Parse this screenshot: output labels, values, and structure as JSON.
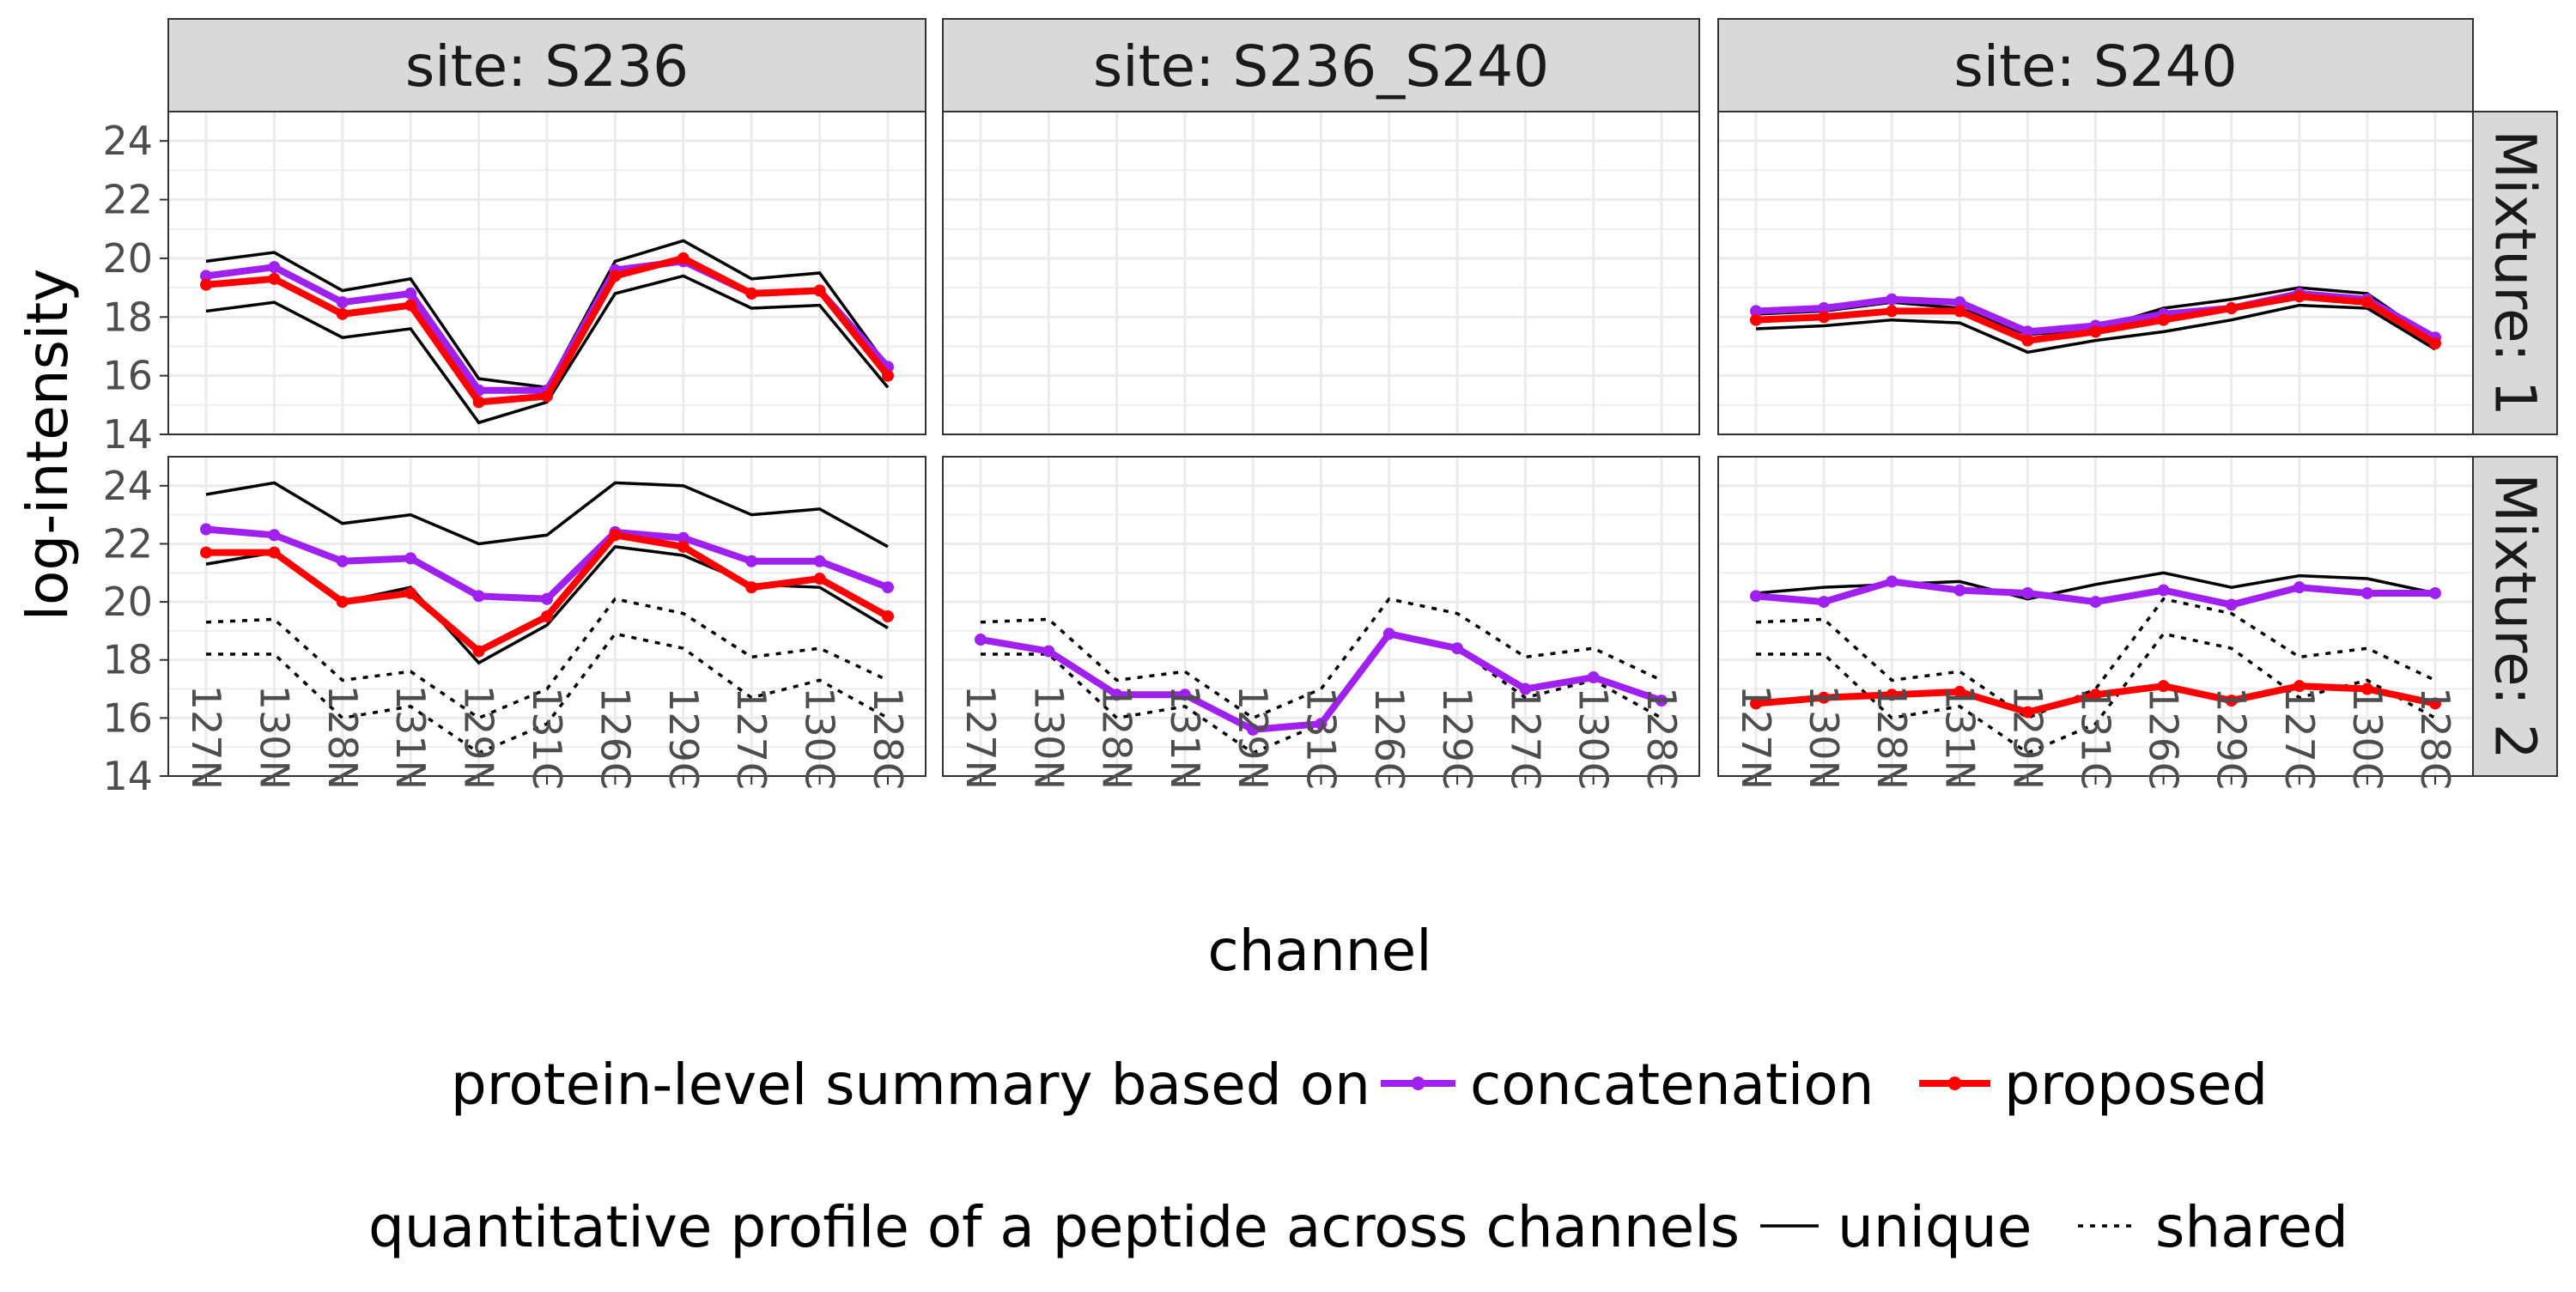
{
  "chart_data": {
    "type": "line",
    "xlabel": "channel",
    "ylabel": "log-intensity",
    "ylim": [
      14,
      25
    ],
    "yticks": [
      14,
      16,
      18,
      20,
      22,
      24
    ],
    "grid": true,
    "categories": [
      "127N",
      "130N",
      "128N",
      "131N",
      "129N",
      "131C",
      "126C",
      "129C",
      "127C",
      "130C",
      "128C"
    ],
    "facet_cols": [
      "site: S236",
      "site: S236_S240",
      "site: S240"
    ],
    "facet_rows": [
      "Mixture:  1",
      "Mixture:  2"
    ],
    "legend": {
      "position": "bottom",
      "summary_title": "protein-level summary based on",
      "summary_items": [
        {
          "label": "concatenation",
          "color": "#A020F0"
        },
        {
          "label": "proposed",
          "color": "#FF0000"
        }
      ],
      "profile_title": "quantitative profile of a peptide across channels",
      "profile_items": [
        {
          "label": "unique",
          "dash": "solid"
        },
        {
          "label": "shared",
          "dash": "dotted"
        }
      ]
    },
    "panels": [
      {
        "site": "site: S236",
        "mixture": "Mixture:  1",
        "peptides": [
          {
            "type": "unique",
            "values": [
              19.9,
              20.2,
              18.9,
              19.3,
              15.9,
              15.6,
              19.9,
              20.6,
              19.3,
              19.5,
              16.3
            ]
          },
          {
            "type": "unique",
            "values": [
              18.2,
              18.5,
              17.3,
              17.6,
              14.4,
              15.1,
              18.8,
              19.4,
              18.3,
              18.4,
              15.6
            ]
          }
        ],
        "summaries": [
          {
            "method": "concatenation",
            "values": [
              19.4,
              19.7,
              18.5,
              18.8,
              15.5,
              15.5,
              19.6,
              19.9,
              18.8,
              18.9,
              16.3
            ]
          },
          {
            "method": "proposed",
            "values": [
              19.1,
              19.3,
              18.1,
              18.4,
              15.1,
              15.3,
              19.4,
              20.0,
              18.8,
              18.9,
              16.0
            ]
          }
        ]
      },
      {
        "site": "site: S236_S240",
        "mixture": "Mixture:  1",
        "peptides": [],
        "summaries": []
      },
      {
        "site": "site: S240",
        "mixture": "Mixture:  1",
        "peptides": [
          {
            "type": "unique",
            "values": [
              18.1,
              18.2,
              18.5,
              18.3,
              17.4,
              17.6,
              18.3,
              18.6,
              19.0,
              18.8,
              17.2
            ]
          },
          {
            "type": "unique",
            "values": [
              17.6,
              17.7,
              17.9,
              17.8,
              16.8,
              17.2,
              17.5,
              17.9,
              18.4,
              18.3,
              16.9
            ]
          }
        ],
        "summaries": [
          {
            "method": "concatenation",
            "values": [
              18.2,
              18.3,
              18.6,
              18.5,
              17.5,
              17.7,
              18.1,
              18.3,
              18.8,
              18.6,
              17.3
            ]
          },
          {
            "method": "proposed",
            "values": [
              17.9,
              18.0,
              18.2,
              18.2,
              17.2,
              17.5,
              17.9,
              18.3,
              18.7,
              18.5,
              17.1
            ]
          }
        ]
      },
      {
        "site": "site: S236",
        "mixture": "Mixture:  2",
        "peptides": [
          {
            "type": "unique",
            "values": [
              23.7,
              24.1,
              22.7,
              23.0,
              22.0,
              22.3,
              24.1,
              24.0,
              23.0,
              23.2,
              21.9
            ]
          },
          {
            "type": "unique",
            "values": [
              21.3,
              21.7,
              20.0,
              20.5,
              17.9,
              19.2,
              21.9,
              21.6,
              20.6,
              20.5,
              19.1
            ]
          },
          {
            "type": "shared",
            "values": [
              19.3,
              19.4,
              17.3,
              17.6,
              16.0,
              17.0,
              20.1,
              19.6,
              18.1,
              18.4,
              17.3
            ]
          },
          {
            "type": "shared",
            "values": [
              18.2,
              18.2,
              16.0,
              16.4,
              14.8,
              15.8,
              18.9,
              18.4,
              16.7,
              17.3,
              16.0
            ]
          }
        ],
        "summaries": [
          {
            "method": "concatenation",
            "values": [
              22.5,
              22.3,
              21.4,
              21.5,
              20.2,
              20.1,
              22.4,
              22.2,
              21.4,
              21.4,
              20.5
            ]
          },
          {
            "method": "proposed",
            "values": [
              21.7,
              21.7,
              20.0,
              20.3,
              18.3,
              19.5,
              22.3,
              21.9,
              20.5,
              20.8,
              19.5
            ]
          }
        ]
      },
      {
        "site": "site: S236_S240",
        "mixture": "Mixture:  2",
        "peptides": [
          {
            "type": "shared",
            "values": [
              19.3,
              19.4,
              17.3,
              17.6,
              16.0,
              17.0,
              20.1,
              19.6,
              18.1,
              18.4,
              17.3
            ]
          },
          {
            "type": "shared",
            "values": [
              18.2,
              18.2,
              16.0,
              16.4,
              14.8,
              15.8,
              18.9,
              18.4,
              16.7,
              17.3,
              16.0
            ]
          }
        ],
        "summaries": [
          {
            "method": "concatenation",
            "values": [
              18.7,
              18.3,
              16.8,
              16.8,
              15.6,
              15.8,
              18.9,
              18.4,
              17.0,
              17.4,
              16.6
            ]
          }
        ]
      },
      {
        "site": "site: S240",
        "mixture": "Mixture:  2",
        "peptides": [
          {
            "type": "unique",
            "values": [
              20.3,
              20.5,
              20.6,
              20.7,
              20.1,
              20.6,
              21.0,
              20.5,
              20.9,
              20.8,
              20.3
            ]
          },
          {
            "type": "shared",
            "values": [
              19.3,
              19.4,
              17.3,
              17.6,
              16.0,
              17.0,
              20.1,
              19.6,
              18.1,
              18.4,
              17.3
            ]
          },
          {
            "type": "shared",
            "values": [
              18.2,
              18.2,
              16.0,
              16.4,
              14.8,
              15.8,
              18.9,
              18.4,
              16.7,
              17.3,
              16.0
            ]
          }
        ],
        "summaries": [
          {
            "method": "concatenation",
            "values": [
              20.2,
              20.0,
              20.7,
              20.4,
              20.3,
              20.0,
              20.4,
              19.9,
              20.5,
              20.3,
              20.3
            ]
          },
          {
            "method": "proposed",
            "values": [
              16.5,
              16.7,
              16.8,
              16.9,
              16.2,
              16.8,
              17.1,
              16.6,
              17.1,
              17.0,
              16.5
            ]
          }
        ]
      }
    ]
  }
}
